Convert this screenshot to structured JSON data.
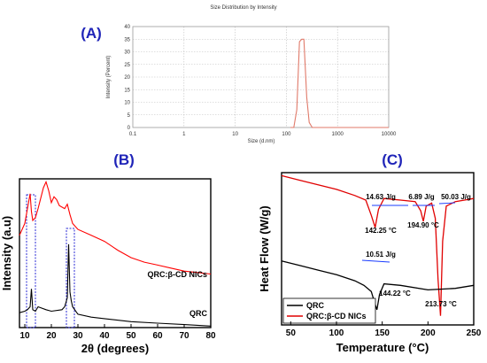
{
  "chart_data": [
    {
      "type": "line",
      "panel_label": "(A)",
      "title": "Size Distribution by Intensity",
      "xlabel": "Size (d.nm)",
      "ylabel": "Intensity (Percent)",
      "xscale": "log",
      "xlim": [
        0.1,
        10000
      ],
      "ylim": [
        0,
        40
      ],
      "x_ticks": [
        "0.1",
        "1",
        "10",
        "100",
        "1000",
        "10000"
      ],
      "y_ticks": [
        "0",
        "5",
        "10",
        "15",
        "20",
        "25",
        "30",
        "35",
        "40"
      ],
      "grid": true,
      "line_color": "#e07a6a",
      "series": [
        {
          "x": [
            120,
            140,
            160,
            180,
            200,
            220,
            250,
            280,
            320,
            10000
          ],
          "y": [
            0,
            0,
            7,
            34,
            35,
            35,
            12,
            2,
            0,
            0
          ]
        }
      ]
    },
    {
      "type": "line",
      "panel_label": "(B)",
      "xlabel": "2θ (degrees)",
      "ylabel": "Intensity (a.u)",
      "xlim": [
        8,
        80
      ],
      "x_ticks": [
        "10",
        "20",
        "30",
        "40",
        "50",
        "60",
        "70",
        "80"
      ],
      "series": [
        {
          "name": "QRC:β-CD NICs",
          "color": "#ff0000",
          "x": [
            8,
            10,
            11,
            12,
            12.5,
            13,
            14,
            15,
            17,
            18,
            19,
            20,
            21,
            22,
            23,
            25,
            26,
            27,
            28,
            30,
            35,
            40,
            45,
            50,
            55,
            60,
            65,
            70,
            75,
            80
          ],
          "y": [
            0.62,
            0.7,
            0.8,
            0.9,
            0.78,
            0.72,
            0.74,
            0.8,
            0.94,
            0.98,
            0.92,
            0.84,
            0.88,
            0.86,
            0.82,
            0.8,
            0.83,
            0.76,
            0.7,
            0.66,
            0.62,
            0.58,
            0.52,
            0.47,
            0.44,
            0.42,
            0.4,
            0.38,
            0.37,
            0.36
          ]
        },
        {
          "name": "QRC",
          "color": "#000000",
          "x": [
            8,
            10,
            11,
            12,
            12.5,
            13,
            14,
            15,
            18,
            20,
            24,
            25,
            26,
            26.5,
            27,
            27.5,
            28,
            30,
            35,
            40,
            50,
            60,
            70,
            80
          ],
          "y": [
            0.1,
            0.11,
            0.12,
            0.14,
            0.26,
            0.12,
            0.11,
            0.14,
            0.12,
            0.11,
            0.12,
            0.14,
            0.2,
            0.56,
            0.24,
            0.18,
            0.14,
            0.09,
            0.07,
            0.06,
            0.04,
            0.03,
            0.02,
            0.01
          ]
        }
      ],
      "labels": [
        "QRC:β-CD NICs",
        "QRC"
      ]
    },
    {
      "type": "line",
      "panel_label": "(C)",
      "xlabel": "Temperature (°C)",
      "ylabel": "Heat Flow (W/g)",
      "xlim": [
        40,
        250
      ],
      "x_ticks": [
        "50",
        "100",
        "150",
        "200",
        "250"
      ],
      "series": [
        {
          "name": "QRC",
          "color": "#000000",
          "x": [
            40,
            60,
            80,
            100,
            120,
            130,
            138,
            142,
            144.22,
            147,
            152,
            170,
            200,
            230,
            250
          ],
          "y": [
            0.42,
            0.39,
            0.36,
            0.33,
            0.29,
            0.26,
            0.22,
            0.14,
            0.1,
            0.2,
            0.27,
            0.26,
            0.23,
            0.24,
            0.26
          ]
        },
        {
          "name": "QRC:β-CD NICs",
          "color": "#e00000",
          "x": [
            40,
            60,
            80,
            100,
            120,
            132,
            138,
            142.25,
            146,
            152,
            170,
            186,
            192,
            194.9,
            198,
            204,
            208,
            211,
            213.73,
            216,
            220,
            230,
            240,
            250
          ],
          "y": [
            0.98,
            0.95,
            0.92,
            0.89,
            0.85,
            0.82,
            0.72,
            0.64,
            0.76,
            0.83,
            0.82,
            0.81,
            0.75,
            0.68,
            0.78,
            0.8,
            0.7,
            0.3,
            0.06,
            0.55,
            0.78,
            0.81,
            0.82,
            0.83
          ]
        }
      ],
      "annotations": [
        "14.63 J/g",
        "142.25 °C",
        "6.89 J/g",
        "194.90 °C",
        "50.03 J/g",
        "10.51 J/g",
        "144.22 °C",
        "213.73 °C"
      ],
      "labels": [
        "QRC",
        "QRC:β-CD NICs"
      ]
    }
  ]
}
